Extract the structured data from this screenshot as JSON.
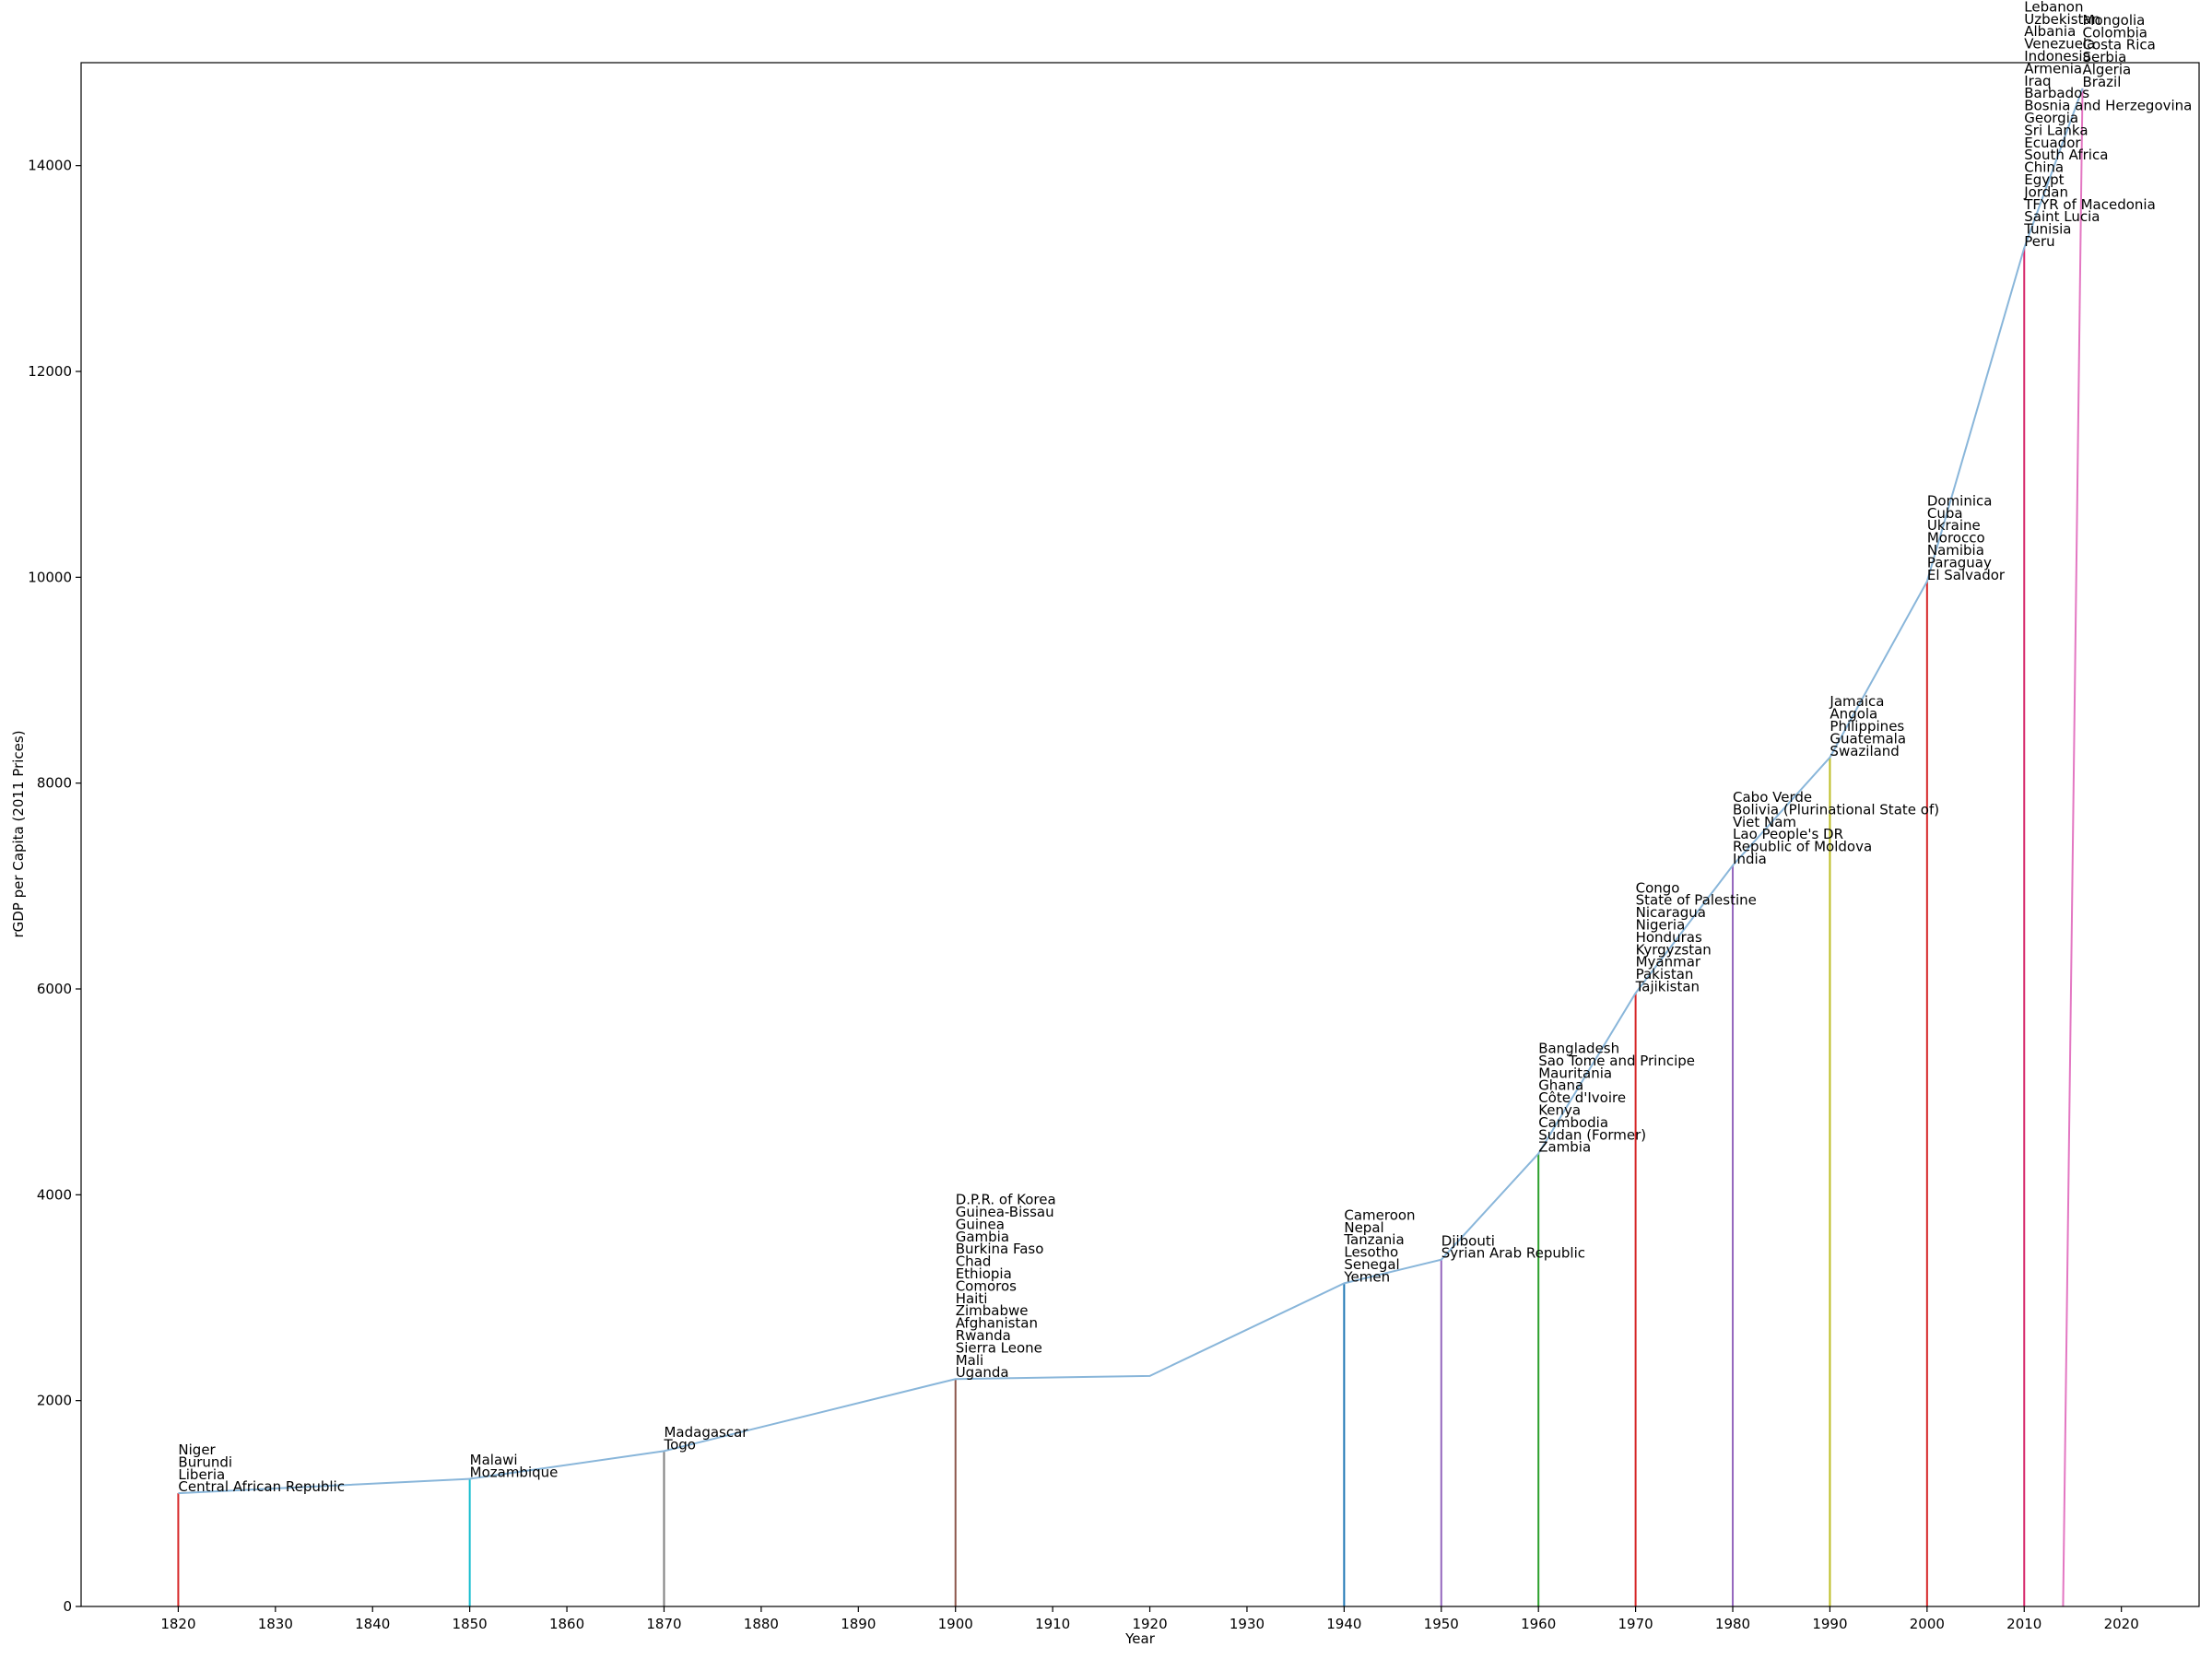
{
  "chart_data": {
    "type": "line",
    "title": "",
    "xlabel": "Year",
    "ylabel": "rGDP per Capita (2011 Prices)",
    "xlim": [
      1810,
      2028
    ],
    "ylim": [
      0,
      15000
    ],
    "xticks": [
      1820,
      1830,
      1840,
      1850,
      1860,
      1870,
      1880,
      1890,
      1900,
      1910,
      1920,
      1930,
      1940,
      1950,
      1960,
      1970,
      1980,
      1990,
      2000,
      2010,
      2020
    ],
    "yticks": [
      0,
      2000,
      4000,
      6000,
      8000,
      10000,
      12000,
      14000
    ],
    "grid": false,
    "line_color": "#89b6da",
    "series": [
      {
        "x": [
          1820,
          1850,
          1870,
          1900,
          1920,
          1940,
          1950,
          1960,
          1970,
          1980,
          1990,
          2000,
          2010,
          2016
        ],
        "values": [
          1100,
          1240,
          1510,
          2210,
          2240,
          3140,
          3370,
          4400,
          5960,
          7200,
          8250,
          9960,
          13200,
          14750
        ]
      }
    ],
    "groups": [
      {
        "x": 1820,
        "y": 1100,
        "color": "#d62728",
        "labels": [
          "Niger",
          "Burundi",
          "Liberia",
          "Central African Republic"
        ]
      },
      {
        "x": 1850,
        "y": 1240,
        "color": "#17becf",
        "labels": [
          "Malawi",
          "Mozambique"
        ]
      },
      {
        "x": 1870,
        "y": 1510,
        "color": "#7f7f7f",
        "labels": [
          "Madagascar",
          "Togo"
        ]
      },
      {
        "x": 1900,
        "y": 2210,
        "color": "#8c564b",
        "labels": [
          "D.P.R. of Korea",
          "Guinea-Bissau",
          "Guinea",
          "Gambia",
          "Burkina Faso",
          "Chad",
          "Ethiopia",
          "Comoros",
          "Haiti",
          "Zimbabwe",
          "Afghanistan",
          "Rwanda",
          "Sierra Leone",
          "Mali",
          "Uganda"
        ]
      },
      {
        "x": 1940,
        "y": 3140,
        "color": "#1f77b4",
        "labels": [
          "Cameroon",
          "Nepal",
          "Tanzania",
          "Lesotho",
          "Senegal",
          "Yemen"
        ]
      },
      {
        "x": 1950,
        "y": 3370,
        "color": "#9467bd",
        "labels": [
          "Djibouti",
          "Syrian Arab Republic"
        ]
      },
      {
        "x": 1960,
        "y": 4400,
        "color": "#2ca02c",
        "labels": [
          "Bangladesh",
          "Sao Tome and Principe",
          "Mauritania",
          "Ghana",
          "Côte d'Ivoire",
          "Kenya",
          "Cambodia",
          "Sudan (Former)",
          "Zambia"
        ]
      },
      {
        "x": 1970,
        "y": 5960,
        "color": "#d62728",
        "labels": [
          "Congo",
          "State of Palestine",
          "Nicaragua",
          "Nigeria",
          "Honduras",
          "Kyrgyzstan",
          "Myanmar",
          "Pakistan",
          "Tajikistan"
        ]
      },
      {
        "x": 1980,
        "y": 7200,
        "color": "#9467bd",
        "labels": [
          "Cabo Verde",
          "Bolivia (Plurinational State of)",
          "Viet Nam",
          "Lao People's DR",
          "Republic of Moldova",
          "India"
        ]
      },
      {
        "x": 1990,
        "y": 8250,
        "color": "#bcbd22",
        "labels": [
          "Jamaica",
          "Angola",
          "Philippines",
          "Guatemala",
          "Swaziland"
        ]
      },
      {
        "x": 2000,
        "y": 9960,
        "color": "#d62728",
        "labels": [
          "Dominica",
          "Cuba",
          "Ukraine",
          "Morocco",
          "Namibia",
          "Paraguay",
          "El Salvador"
        ]
      },
      {
        "x": 2010,
        "y": 13200,
        "color": "#d6276a",
        "labels": [
          "Lebanon",
          "Uzbekistan",
          "Albania",
          "Venezuela",
          "Indonesia",
          "Armenia",
          "Iraq",
          "Barbados",
          "Bosnia and Herzegovina",
          "Georgia",
          "Sri Lanka",
          "Ecuador",
          "South Africa",
          "China",
          "Egypt",
          "Jordan",
          "TFYR of Macedonia",
          "Saint Lucia",
          "Tunisia",
          "Peru"
        ]
      },
      {
        "x": 2016,
        "x0": 2014,
        "y": 14750,
        "color": "#e377c2",
        "labels": [
          "Mongolia",
          "Colombia",
          "Costa Rica",
          "Serbia",
          "Algeria",
          "Brazil"
        ]
      }
    ]
  }
}
